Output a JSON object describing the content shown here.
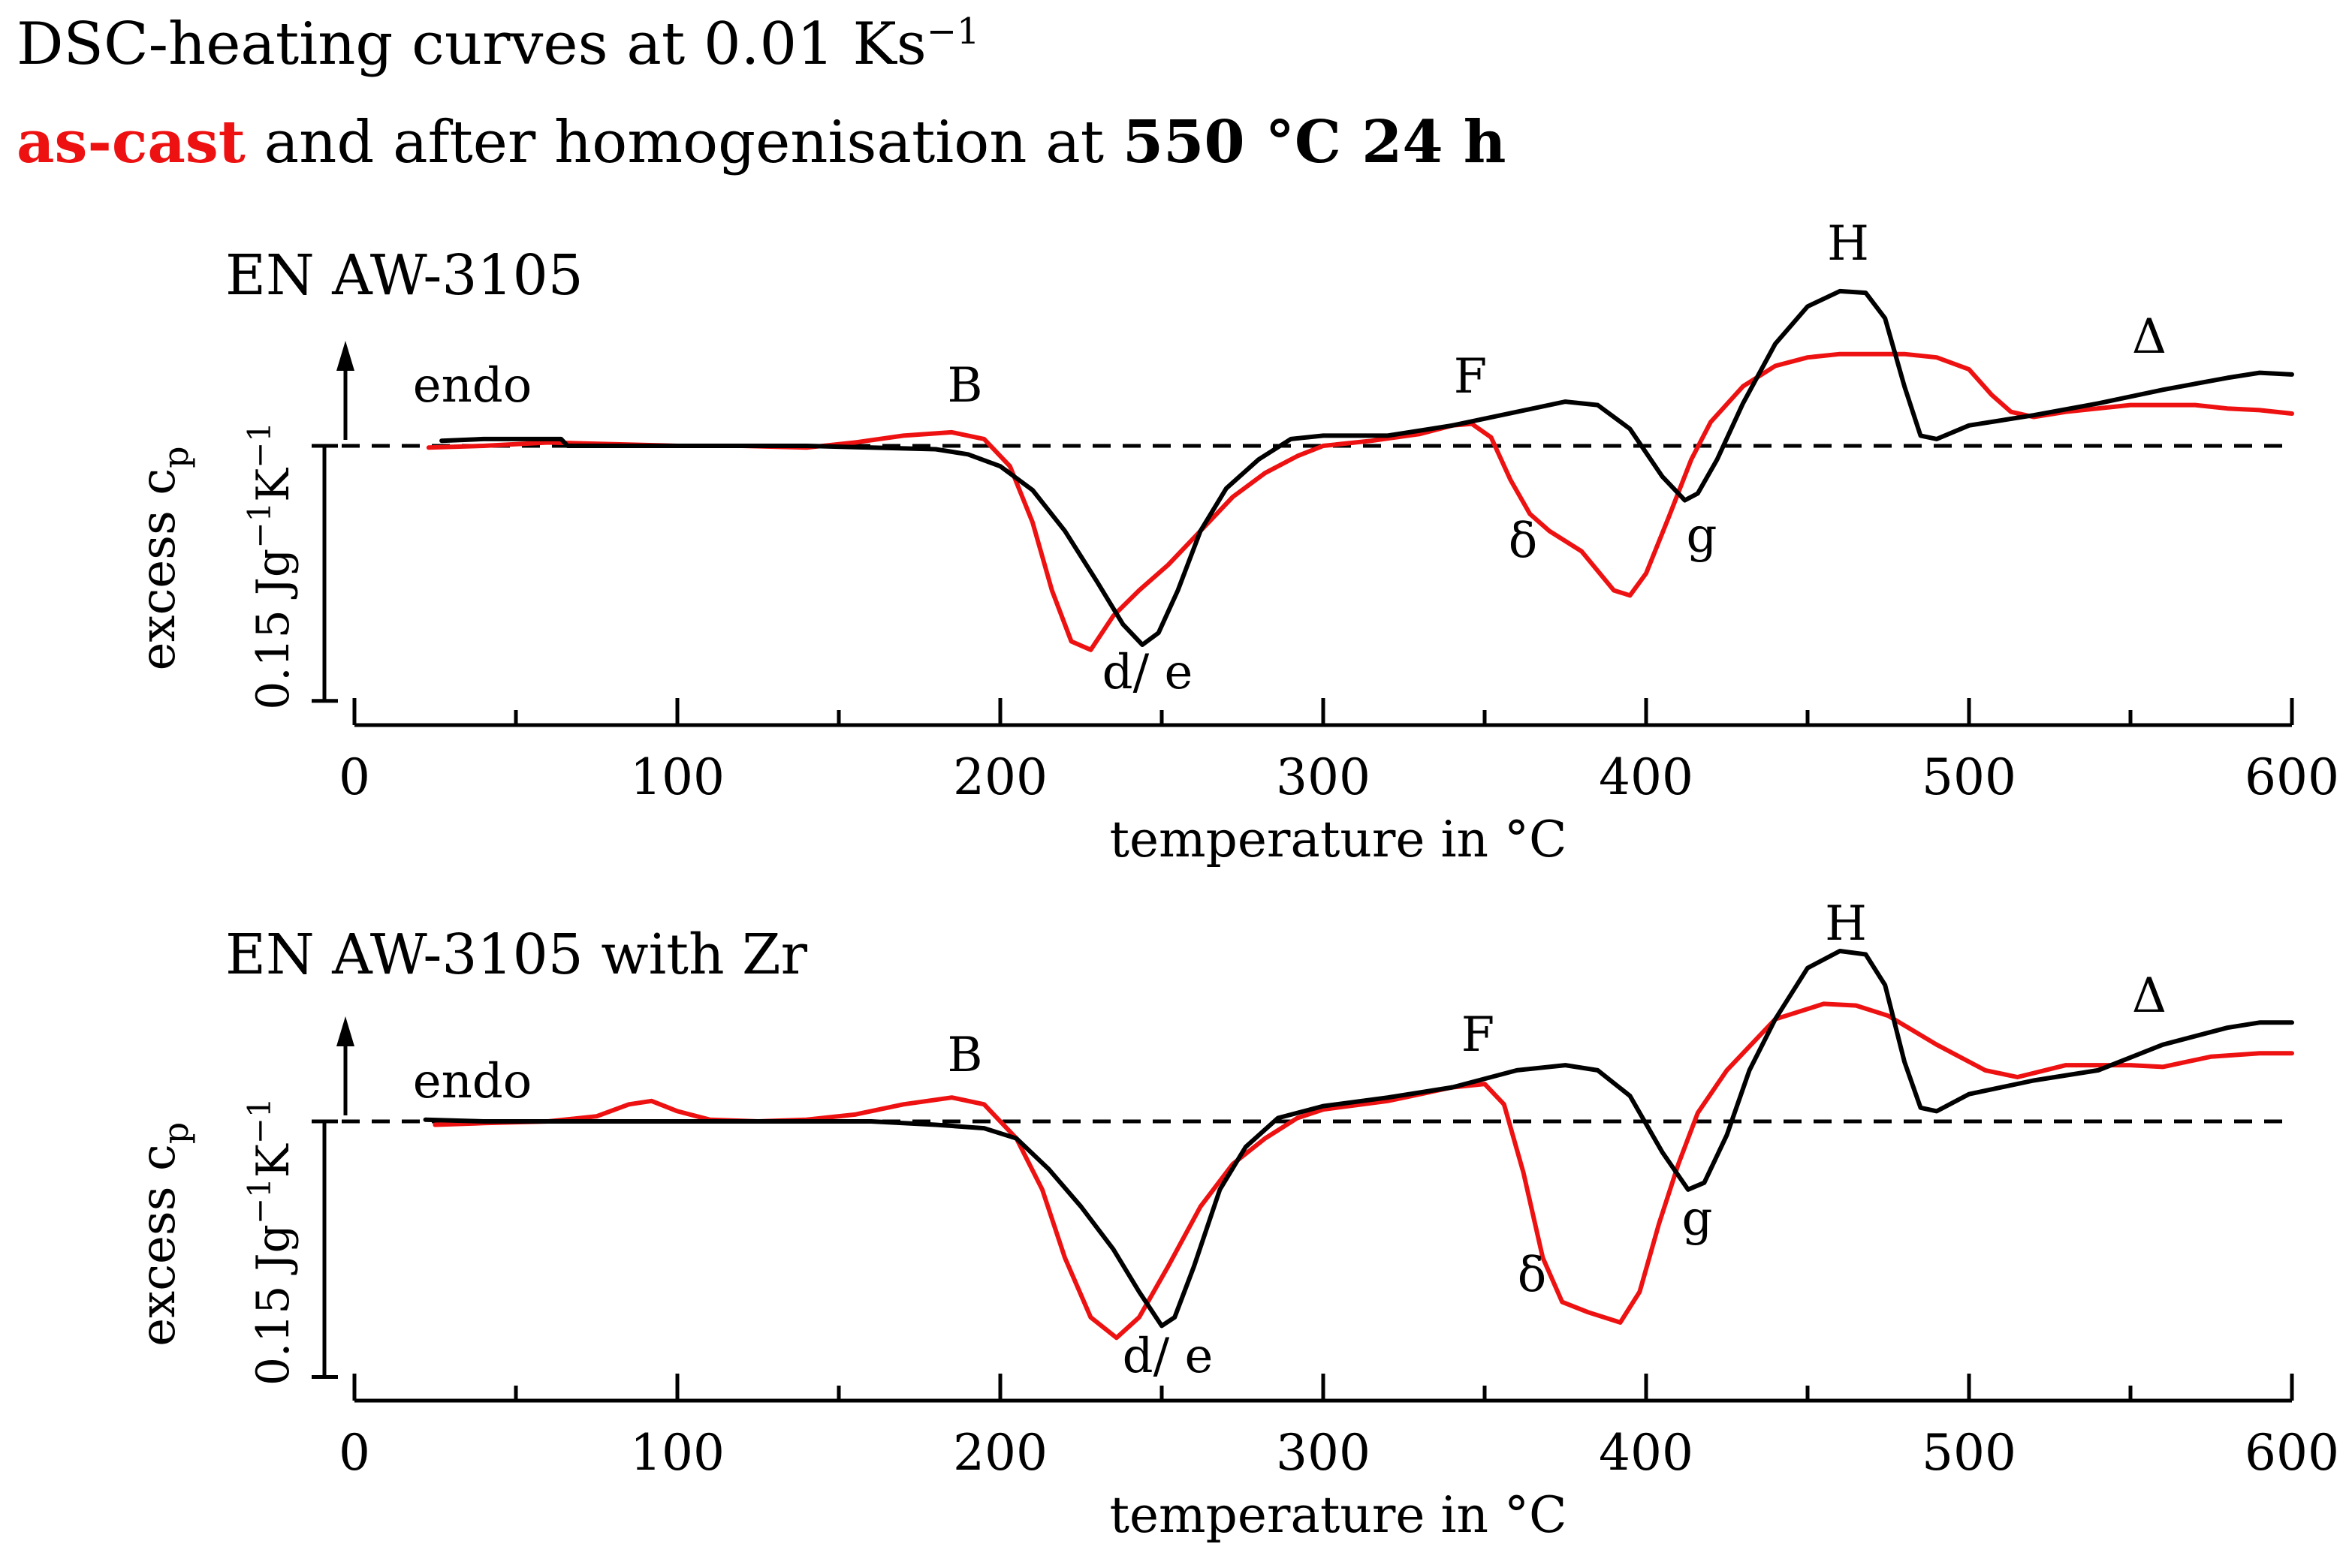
{
  "header": {
    "line1_text": "DSC-heating curves at 0.01 Ks",
    "line1_sup": "−1",
    "line2_red": "as-cast",
    "line2_middle": " and after homogenisation at ",
    "line2_bold": "550 °C 24 h"
  },
  "colors": {
    "as_cast": "#ee1111",
    "homogenised": "#000000"
  },
  "chart_data": [
    {
      "type": "line",
      "title": "EN AW-3105",
      "xlabel": "temperature in °C",
      "ylabel": "excess c",
      "ylabel_sub": "p",
      "scale_label": "0.15 Jg",
      "scale_sup1": "−1",
      "scale_mid": "K",
      "scale_sup2": "−1",
      "scale_bar_value": 0.15,
      "endo_label": "endo",
      "xlim": [
        0,
        600
      ],
      "ylim": [
        -0.18,
        0.21
      ],
      "xticks": [
        0,
        100,
        200,
        300,
        400,
        500,
        600
      ],
      "xtick_labels": [
        "0",
        "100",
        "200",
        "300",
        "400",
        "500",
        "600"
      ],
      "baseline": 0,
      "series": [
        {
          "color": "#ee1111",
          "points": [
            [
              23,
              -0.001
            ],
            [
              40,
              0.0
            ],
            [
              60,
              0.002
            ],
            [
              80,
              0.001
            ],
            [
              100,
              0.0
            ],
            [
              120,
              0.0
            ],
            [
              140,
              -0.001
            ],
            [
              155,
              0.002
            ],
            [
              170,
              0.006
            ],
            [
              185,
              0.008
            ],
            [
              195,
              0.004
            ],
            [
              203,
              -0.012
            ],
            [
              210,
              -0.045
            ],
            [
              216,
              -0.085
            ],
            [
              222,
              -0.115
            ],
            [
              228,
              -0.12
            ],
            [
              235,
              -0.1
            ],
            [
              243,
              -0.085
            ],
            [
              252,
              -0.07
            ],
            [
              262,
              -0.05
            ],
            [
              272,
              -0.03
            ],
            [
              282,
              -0.016
            ],
            [
              292,
              -0.006
            ],
            [
              300,
              0.0
            ],
            [
              315,
              0.003
            ],
            [
              330,
              0.007
            ],
            [
              340,
              0.012
            ],
            [
              346,
              0.013
            ],
            [
              352,
              0.005
            ],
            [
              358,
              -0.02
            ],
            [
              364,
              -0.04
            ],
            [
              370,
              -0.05
            ],
            [
              380,
              -0.062
            ],
            [
              390,
              -0.085
            ],
            [
              395,
              -0.088
            ],
            [
              400,
              -0.075
            ],
            [
              407,
              -0.042
            ],
            [
              414,
              -0.008
            ],
            [
              420,
              0.014
            ],
            [
              430,
              0.035
            ],
            [
              440,
              0.047
            ],
            [
              450,
              0.052
            ],
            [
              460,
              0.054
            ],
            [
              470,
              0.054
            ],
            [
              480,
              0.054
            ],
            [
              490,
              0.052
            ],
            [
              500,
              0.045
            ],
            [
              507,
              0.03
            ],
            [
              513,
              0.02
            ],
            [
              520,
              0.017
            ],
            [
              530,
              0.02
            ],
            [
              550,
              0.024
            ],
            [
              570,
              0.024
            ],
            [
              580,
              0.022
            ],
            [
              590,
              0.021
            ],
            [
              600,
              0.019
            ]
          ]
        },
        {
          "color": "#000000",
          "points": [
            [
              27,
              0.003
            ],
            [
              40,
              0.004
            ],
            [
              60,
              0.004
            ],
            [
              64,
              0.004
            ],
            [
              66,
              0.0
            ],
            [
              80,
              0.0
            ],
            [
              100,
              0.0
            ],
            [
              120,
              0.0
            ],
            [
              140,
              0.0
            ],
            [
              160,
              -0.001
            ],
            [
              180,
              -0.002
            ],
            [
              190,
              -0.005
            ],
            [
              200,
              -0.012
            ],
            [
              210,
              -0.026
            ],
            [
              220,
              -0.05
            ],
            [
              230,
              -0.08
            ],
            [
              238,
              -0.105
            ],
            [
              244,
              -0.117
            ],
            [
              249,
              -0.11
            ],
            [
              255,
              -0.085
            ],
            [
              262,
              -0.05
            ],
            [
              270,
              -0.025
            ],
            [
              280,
              -0.008
            ],
            [
              290,
              0.004
            ],
            [
              300,
              0.006
            ],
            [
              320,
              0.006
            ],
            [
              340,
              0.012
            ],
            [
              360,
              0.02
            ],
            [
              375,
              0.026
            ],
            [
              385,
              0.024
            ],
            [
              395,
              0.01
            ],
            [
              405,
              -0.018
            ],
            [
              412,
              -0.032
            ],
            [
              416,
              -0.028
            ],
            [
              422,
              -0.008
            ],
            [
              430,
              0.025
            ],
            [
              440,
              0.06
            ],
            [
              450,
              0.082
            ],
            [
              460,
              0.091
            ],
            [
              468,
              0.09
            ],
            [
              474,
              0.075
            ],
            [
              480,
              0.035
            ],
            [
              485,
              0.006
            ],
            [
              490,
              0.004
            ],
            [
              500,
              0.012
            ],
            [
              520,
              0.018
            ],
            [
              540,
              0.025
            ],
            [
              560,
              0.033
            ],
            [
              580,
              0.04
            ],
            [
              590,
              0.043
            ],
            [
              600,
              0.042
            ]
          ]
        }
      ],
      "annotations": [
        {
          "text": "endo"
        },
        {
          "text": "B"
        },
        {
          "text": "F"
        },
        {
          "text": "d/ e"
        },
        {
          "text": "δ"
        },
        {
          "text": "g"
        },
        {
          "text": "H"
        },
        {
          "text": "Δ"
        }
      ]
    },
    {
      "type": "line",
      "title": "EN AW-3105 with Zr",
      "xlabel": "temperature in °C",
      "ylabel": "excess c",
      "ylabel_sub": "p",
      "scale_label": "0.15 Jg",
      "scale_sup1": "−1",
      "scale_mid": "K",
      "scale_sup2": "−1",
      "scale_bar_value": 0.15,
      "endo_label": "endo",
      "xlim": [
        0,
        600
      ],
      "ylim": [
        -0.18,
        0.21
      ],
      "xticks": [
        0,
        100,
        200,
        300,
        400,
        500,
        600
      ],
      "xtick_labels": [
        "0",
        "100",
        "200",
        "300",
        "400",
        "500",
        "600"
      ],
      "baseline": 0,
      "series": [
        {
          "color": "#ee1111",
          "points": [
            [
              25,
              -0.002
            ],
            [
              40,
              -0.001
            ],
            [
              60,
              0.0
            ],
            [
              75,
              0.003
            ],
            [
              85,
              0.01
            ],
            [
              92,
              0.012
            ],
            [
              100,
              0.006
            ],
            [
              110,
              0.001
            ],
            [
              125,
              0.0
            ],
            [
              140,
              0.001
            ],
            [
              155,
              0.004
            ],
            [
              170,
              0.01
            ],
            [
              185,
              0.014
            ],
            [
              195,
              0.01
            ],
            [
              205,
              -0.01
            ],
            [
              213,
              -0.04
            ],
            [
              220,
              -0.08
            ],
            [
              228,
              -0.115
            ],
            [
              236,
              -0.127
            ],
            [
              243,
              -0.115
            ],
            [
              252,
              -0.085
            ],
            [
              262,
              -0.05
            ],
            [
              272,
              -0.025
            ],
            [
              282,
              -0.01
            ],
            [
              292,
              0.002
            ],
            [
              300,
              0.007
            ],
            [
              320,
              0.012
            ],
            [
              340,
              0.02
            ],
            [
              350,
              0.022
            ],
            [
              356,
              0.01
            ],
            [
              362,
              -0.03
            ],
            [
              368,
              -0.08
            ],
            [
              374,
              -0.106
            ],
            [
              382,
              -0.112
            ],
            [
              392,
              -0.118
            ],
            [
              398,
              -0.1
            ],
            [
              404,
              -0.06
            ],
            [
              410,
              -0.025
            ],
            [
              416,
              0.005
            ],
            [
              425,
              0.03
            ],
            [
              440,
              0.06
            ],
            [
              455,
              0.069
            ],
            [
              465,
              0.068
            ],
            [
              475,
              0.062
            ],
            [
              490,
              0.045
            ],
            [
              505,
              0.03
            ],
            [
              515,
              0.026
            ],
            [
              530,
              0.033
            ],
            [
              550,
              0.033
            ],
            [
              560,
              0.032
            ],
            [
              575,
              0.038
            ],
            [
              590,
              0.04
            ],
            [
              600,
              0.04
            ]
          ]
        },
        {
          "color": "#000000",
          "points": [
            [
              22,
              0.001
            ],
            [
              40,
              0.0
            ],
            [
              60,
              0.0
            ],
            [
              80,
              0.0
            ],
            [
              100,
              0.0
            ],
            [
              120,
              0.0
            ],
            [
              140,
              0.0
            ],
            [
              160,
              0.0
            ],
            [
              180,
              -0.002
            ],
            [
              195,
              -0.004
            ],
            [
              205,
              -0.01
            ],
            [
              215,
              -0.028
            ],
            [
              225,
              -0.05
            ],
            [
              235,
              -0.075
            ],
            [
              243,
              -0.1
            ],
            [
              250,
              -0.12
            ],
            [
              254,
              -0.115
            ],
            [
              260,
              -0.085
            ],
            [
              268,
              -0.04
            ],
            [
              276,
              -0.015
            ],
            [
              286,
              0.002
            ],
            [
              300,
              0.009
            ],
            [
              320,
              0.014
            ],
            [
              340,
              0.02
            ],
            [
              360,
              0.03
            ],
            [
              375,
              0.033
            ],
            [
              385,
              0.03
            ],
            [
              395,
              0.015
            ],
            [
              405,
              -0.018
            ],
            [
              413,
              -0.04
            ],
            [
              418,
              -0.036
            ],
            [
              425,
              -0.008
            ],
            [
              432,
              0.03
            ],
            [
              440,
              0.06
            ],
            [
              450,
              0.09
            ],
            [
              460,
              0.1
            ],
            [
              468,
              0.098
            ],
            [
              474,
              0.08
            ],
            [
              480,
              0.035
            ],
            [
              485,
              0.008
            ],
            [
              490,
              0.006
            ],
            [
              500,
              0.016
            ],
            [
              520,
              0.024
            ],
            [
              540,
              0.03
            ],
            [
              560,
              0.045
            ],
            [
              580,
              0.055
            ],
            [
              590,
              0.058
            ],
            [
              600,
              0.058
            ]
          ]
        }
      ],
      "annotations": [
        {
          "text": "endo"
        },
        {
          "text": "B"
        },
        {
          "text": "F"
        },
        {
          "text": "d/ e"
        },
        {
          "text": "δ"
        },
        {
          "text": "g"
        },
        {
          "text": "H"
        },
        {
          "text": "Δ"
        }
      ]
    }
  ]
}
